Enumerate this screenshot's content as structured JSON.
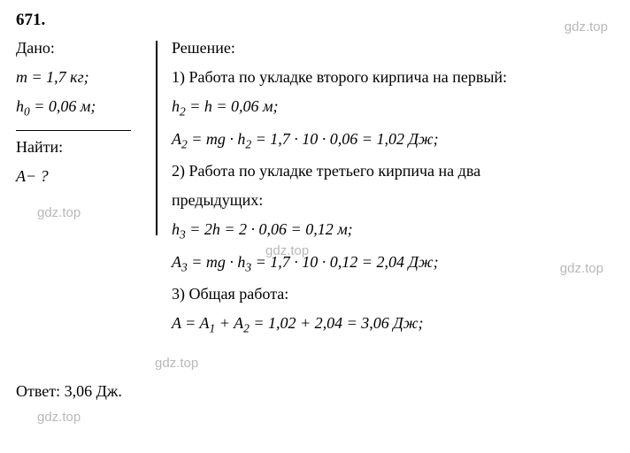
{
  "problem_number": "671.",
  "given": {
    "header": "Дано:",
    "mass": "m = 1,7 кг;",
    "height": "h₀ = 0,06 м;",
    "find_header": "Найти:",
    "find_var": "A− ?"
  },
  "solution": {
    "header": "Решение:",
    "step1_text": "1) Работа по укладке второго кирпича на первый:",
    "step1_h": "h₂ = h = 0,06 м;",
    "step1_a": "A₂ = mg · h₂ = 1,7 · 10 · 0,06 = 1,02 Дж;",
    "step2_text": "2) Работа по укладке третьего кирпича на два",
    "step2_text2": "предыдущих:",
    "step2_h": "h₃ = 2h = 2 · 0,06 = 0,12 м;",
    "step2_a": "A₃ = mg · h₃ = 1,7 · 10 · 0,12 = 2,04 Дж;",
    "step3_text": "3) Общая работа:",
    "step3_a": "A = A₁ + A₂ = 1,02 + 2,04 = 3,06 Дж;"
  },
  "answer": "Ответ:  3,06 Дж.",
  "watermark": "gdz.top",
  "colors": {
    "text": "#000000",
    "background": "#ffffff",
    "watermark": "#b8b8b8"
  }
}
